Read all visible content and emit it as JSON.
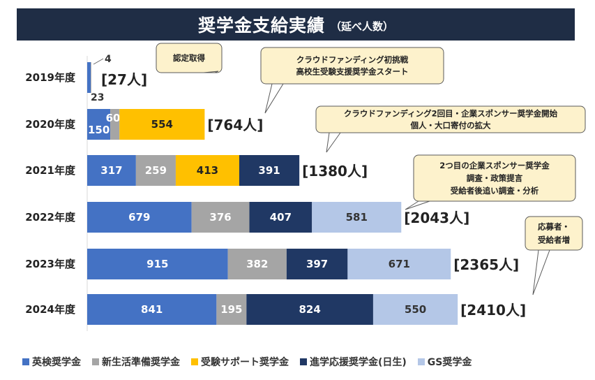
{
  "header": {
    "title": "奨学金支給実績",
    "subtitle": "（延べ人数）"
  },
  "colors": {
    "eiken": "#4472c4",
    "shinseikatsu": "#a5a5a5",
    "juken": "#ffc000",
    "shingaku": "#203864",
    "gs": "#b4c7e7",
    "callout_fill": "#fdf2cc",
    "title_bg": "#1f2d45"
  },
  "chart_data": {
    "type": "bar",
    "orientation": "horizontal",
    "stacked": true,
    "title": "奨学金支給実績（延べ人数）",
    "categories": [
      "2019年度",
      "2020年度",
      "2021年度",
      "2022年度",
      "2023年度",
      "2024年度"
    ],
    "series": [
      {
        "key": "eiken",
        "name": "英検奨学金",
        "values": [
          23,
          150,
          317,
          679,
          915,
          841
        ]
      },
      {
        "key": "shinseikatsu",
        "name": "新生活準備奨学金",
        "values": [
          4,
          60,
          259,
          376,
          382,
          195
        ]
      },
      {
        "key": "juken",
        "name": "受験サポート奨学金",
        "values": [
          0,
          554,
          413,
          0,
          0,
          0
        ]
      },
      {
        "key": "shingaku",
        "name": "進学応援奨学金(日生)",
        "values": [
          0,
          0,
          391,
          407,
          397,
          824
        ]
      },
      {
        "key": "gs",
        "name": "GS奨学金",
        "values": [
          0,
          0,
          0,
          581,
          671,
          550
        ]
      }
    ],
    "totals": [
      27,
      764,
      1380,
      2043,
      2365,
      2410
    ],
    "total_labels": [
      "[27人]",
      "[764人]",
      "[1380人]",
      "[2043人]",
      "[2365人]",
      "[2410人]"
    ],
    "legend_position": "bottom",
    "annotations": [
      {
        "row": 0,
        "lines": [
          "認定取得"
        ]
      },
      {
        "row": 1,
        "lines": [
          "クラウドファンディング初挑戦",
          "高校生受験支援奨学金スタート"
        ]
      },
      {
        "row": 2,
        "lines": [
          "クラウドファンディング2回目・企業スポンサー奨学金開始",
          "個人・大口寄付の拡大"
        ]
      },
      {
        "row": 3,
        "lines": [
          "2つ目の企業スポンサー奨学金",
          "調査・政策提言",
          "受給者後追い調査・分析"
        ]
      },
      {
        "row": 5,
        "lines": [
          "応募者・",
          "受給者増"
        ]
      }
    ]
  }
}
